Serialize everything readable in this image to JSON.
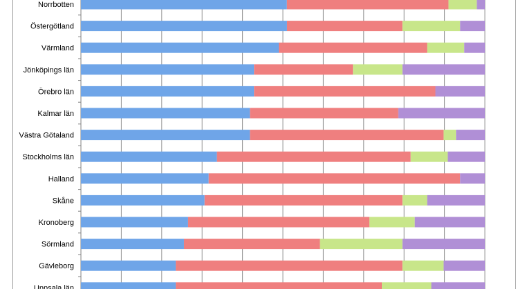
{
  "chart_data": {
    "type": "bar",
    "orientation": "horizontal",
    "stacked": true,
    "percent_stacked": true,
    "grid": true,
    "xlim": [
      0,
      100
    ],
    "categories": [
      "Norrbotten",
      "Östergötland",
      "Värmland",
      "Jönköpings län",
      "Örebro län",
      "Kalmar län",
      "Västra Götaland",
      "Stockholms län",
      "Halland",
      "Skåne",
      "Kronoberg",
      "Sörmland",
      "Gävleborg",
      "Uppsala län"
    ],
    "series": [
      {
        "color": "#6fa5e8",
        "values": [
          51,
          50,
          48,
          42,
          42,
          41,
          41,
          33,
          31,
          30,
          26,
          25,
          23,
          23
        ]
      },
      {
        "color": "#ef7f7f",
        "values": [
          40,
          28,
          36,
          24,
          44,
          36,
          47,
          47,
          61,
          48,
          44,
          33,
          55,
          50
        ]
      },
      {
        "color": "#c8e68a",
        "values": [
          7,
          14,
          9,
          12,
          0,
          0,
          3,
          9,
          0,
          6,
          11,
          20,
          10,
          12
        ]
      },
      {
        "color": "#b08fd6",
        "values": [
          2,
          6,
          5,
          20,
          12,
          21,
          7,
          9,
          6,
          14,
          17,
          20,
          10,
          13
        ]
      }
    ]
  }
}
